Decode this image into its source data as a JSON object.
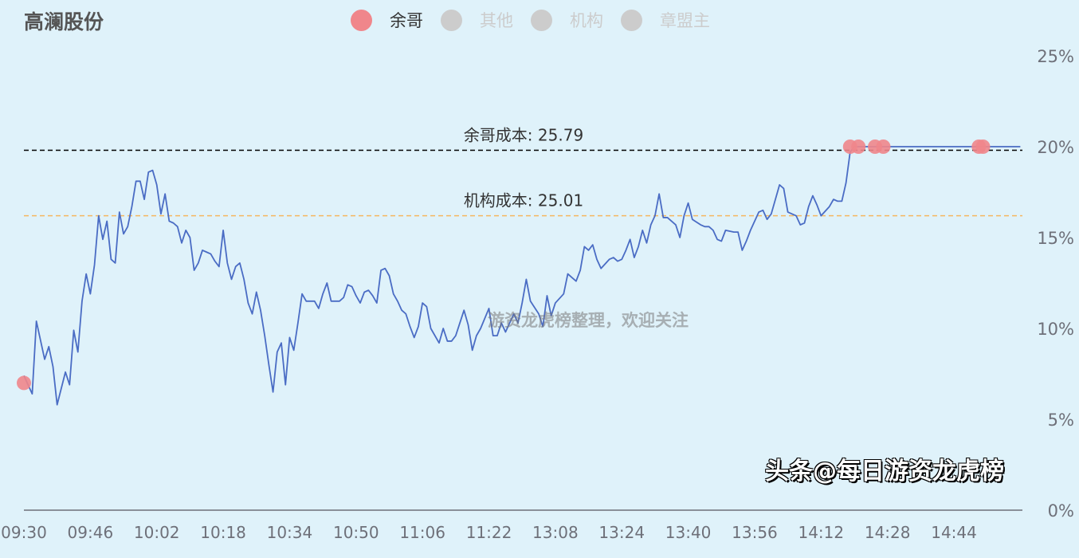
{
  "title": "高澜股份",
  "legend": [
    {
      "name": "余哥",
      "color": "#f0868b",
      "active": true
    },
    {
      "name": "其他",
      "color": "#cccccc",
      "active": false
    },
    {
      "name": "机构",
      "color": "#cccccc",
      "active": false
    },
    {
      "name": "章盟主",
      "color": "#cccccc",
      "active": false
    }
  ],
  "watermark_center": "游资龙虎榜整理，欢迎关注",
  "watermark_corner": "头条@每日游资龙虎榜",
  "chart_data": {
    "type": "line",
    "ylim": [
      0,
      25
    ],
    "y_ticks": [
      "0%",
      "5%",
      "10%",
      "15%",
      "20%",
      "25%"
    ],
    "y_axis_position": "right",
    "x_ticks": [
      "09:30",
      "09:46",
      "10:02",
      "10:18",
      "10:34",
      "10:50",
      "11:06",
      "11:22",
      "13:08",
      "13:24",
      "13:40",
      "13:56",
      "14:12",
      "14:28",
      "14:44"
    ],
    "line_color": "#4a6cc4",
    "grid": false,
    "reference_lines": [
      {
        "label": "余哥成本: 25.79",
        "value": 19.8,
        "color": "#000000"
      },
      {
        "label": "机构成本: 25.01",
        "value": 16.2,
        "color": "#f5b861"
      }
    ],
    "series": [
      {
        "points": [
          [
            "09:30",
            7.4
          ],
          [
            "09:32",
            6.4
          ],
          [
            "09:33",
            10.4
          ],
          [
            "09:35",
            8.3
          ],
          [
            "09:36",
            9.0
          ],
          [
            "09:37",
            7.9
          ],
          [
            "09:38",
            5.8
          ],
          [
            "09:40",
            7.6
          ],
          [
            "09:41",
            6.9
          ],
          [
            "09:42",
            9.9
          ],
          [
            "09:43",
            8.7
          ],
          [
            "09:44",
            11.5
          ],
          [
            "09:45",
            13.0
          ],
          [
            "09:46",
            11.9
          ],
          [
            "09:47",
            13.5
          ],
          [
            "09:48",
            16.2
          ],
          [
            "09:49",
            14.9
          ],
          [
            "09:50",
            15.9
          ],
          [
            "09:51",
            13.8
          ],
          [
            "09:52",
            13.6
          ],
          [
            "09:53",
            16.4
          ],
          [
            "09:54",
            15.2
          ],
          [
            "09:55",
            15.6
          ],
          [
            "09:56",
            16.7
          ],
          [
            "09:57",
            18.1
          ],
          [
            "09:58",
            18.1
          ],
          [
            "09:59",
            17.1
          ],
          [
            "10:00",
            18.6
          ],
          [
            "10:01",
            18.7
          ],
          [
            "10:02",
            17.9
          ],
          [
            "10:03",
            16.3
          ],
          [
            "10:04",
            17.4
          ],
          [
            "10:05",
            15.9
          ],
          [
            "10:06",
            15.8
          ],
          [
            "10:07",
            15.6
          ],
          [
            "10:08",
            14.7
          ],
          [
            "10:09",
            15.4
          ],
          [
            "10:10",
            15.0
          ],
          [
            "10:11",
            13.2
          ],
          [
            "10:12",
            13.6
          ],
          [
            "10:13",
            14.3
          ],
          [
            "10:14",
            14.2
          ],
          [
            "10:15",
            14.1
          ],
          [
            "10:16",
            13.7
          ],
          [
            "10:17",
            13.4
          ],
          [
            "10:18",
            15.4
          ],
          [
            "10:19",
            13.6
          ],
          [
            "10:20",
            12.7
          ],
          [
            "10:21",
            13.4
          ],
          [
            "10:22",
            13.6
          ],
          [
            "10:23",
            12.7
          ],
          [
            "10:24",
            11.4
          ],
          [
            "10:25",
            10.8
          ],
          [
            "10:26",
            12.0
          ],
          [
            "10:27",
            11.0
          ],
          [
            "10:28",
            9.6
          ],
          [
            "10:29",
            8.0
          ],
          [
            "10:30",
            6.5
          ],
          [
            "10:31",
            8.7
          ],
          [
            "10:32",
            9.2
          ],
          [
            "10:33",
            6.9
          ],
          [
            "10:34",
            9.5
          ],
          [
            "10:35",
            8.8
          ],
          [
            "10:36",
            10.3
          ],
          [
            "10:37",
            11.9
          ],
          [
            "10:38",
            11.5
          ],
          [
            "10:39",
            11.5
          ],
          [
            "10:40",
            11.5
          ],
          [
            "10:41",
            11.1
          ],
          [
            "10:42",
            11.9
          ],
          [
            "10:43",
            12.5
          ],
          [
            "10:44",
            11.5
          ],
          [
            "10:46",
            11.5
          ],
          [
            "10:47",
            11.7
          ],
          [
            "10:48",
            12.4
          ],
          [
            "10:49",
            12.3
          ],
          [
            "10:50",
            11.8
          ],
          [
            "10:51",
            11.4
          ],
          [
            "10:52",
            12.0
          ],
          [
            "10:53",
            12.1
          ],
          [
            "10:54",
            11.8
          ],
          [
            "10:55",
            11.4
          ],
          [
            "10:56",
            13.2
          ],
          [
            "10:57",
            13.3
          ],
          [
            "10:58",
            12.9
          ],
          [
            "10:59",
            11.9
          ],
          [
            "11:00",
            11.5
          ],
          [
            "11:01",
            11.0
          ],
          [
            "11:02",
            10.8
          ],
          [
            "11:03",
            10.1
          ],
          [
            "11:04",
            9.5
          ],
          [
            "11:05",
            10.1
          ],
          [
            "11:06",
            11.4
          ],
          [
            "11:07",
            11.2
          ],
          [
            "11:08",
            10.0
          ],
          [
            "11:10",
            9.2
          ],
          [
            "11:11",
            10.0
          ],
          [
            "11:12",
            9.3
          ],
          [
            "11:13",
            9.3
          ],
          [
            "11:14",
            9.6
          ],
          [
            "11:15",
            10.3
          ],
          [
            "11:16",
            11.0
          ],
          [
            "11:17",
            10.2
          ],
          [
            "11:18",
            8.8
          ],
          [
            "11:19",
            9.6
          ],
          [
            "11:20",
            10.0
          ],
          [
            "11:22",
            11.1
          ],
          [
            "11:23",
            9.6
          ],
          [
            "11:24",
            9.6
          ],
          [
            "11:25",
            10.3
          ],
          [
            "11:26",
            9.8
          ],
          [
            "11:28",
            10.8
          ],
          [
            "11:29",
            10.3
          ],
          [
            "11:30",
            11.4
          ],
          [
            "13:01",
            12.7
          ],
          [
            "13:02",
            11.5
          ],
          [
            "13:04",
            10.8
          ],
          [
            "13:05",
            10.1
          ],
          [
            "13:06",
            11.8
          ],
          [
            "13:07",
            10.7
          ],
          [
            "13:08",
            11.4
          ],
          [
            "13:10",
            11.9
          ],
          [
            "13:11",
            13.0
          ],
          [
            "13:12",
            12.8
          ],
          [
            "13:13",
            12.6
          ],
          [
            "13:14",
            13.2
          ],
          [
            "13:15",
            14.5
          ],
          [
            "13:16",
            14.3
          ],
          [
            "13:17",
            14.6
          ],
          [
            "13:18",
            13.8
          ],
          [
            "13:19",
            13.3
          ],
          [
            "13:21",
            13.8
          ],
          [
            "13:22",
            13.9
          ],
          [
            "13:23",
            13.7
          ],
          [
            "13:24",
            13.8
          ],
          [
            "13:25",
            14.3
          ],
          [
            "13:26",
            14.9
          ],
          [
            "13:27",
            13.9
          ],
          [
            "13:28",
            14.5
          ],
          [
            "13:29",
            15.4
          ],
          [
            "13:30",
            14.7
          ],
          [
            "13:31",
            15.7
          ],
          [
            "13:32",
            16.2
          ],
          [
            "13:33",
            17.4
          ],
          [
            "13:34",
            16.1
          ],
          [
            "13:35",
            16.1
          ],
          [
            "13:37",
            15.7
          ],
          [
            "13:38",
            15.0
          ],
          [
            "13:39",
            16.2
          ],
          [
            "13:40",
            16.9
          ],
          [
            "13:41",
            16.0
          ],
          [
            "13:43",
            15.7
          ],
          [
            "13:44",
            15.6
          ],
          [
            "13:45",
            15.6
          ],
          [
            "13:46",
            15.4
          ],
          [
            "13:47",
            14.9
          ],
          [
            "13:48",
            14.8
          ],
          [
            "13:49",
            15.4
          ],
          [
            "13:51",
            15.3
          ],
          [
            "13:52",
            15.3
          ],
          [
            "13:53",
            14.3
          ],
          [
            "13:54",
            14.8
          ],
          [
            "13:55",
            15.4
          ],
          [
            "13:57",
            16.4
          ],
          [
            "13:58",
            16.5
          ],
          [
            "13:59",
            16.0
          ],
          [
            "14:00",
            16.3
          ],
          [
            "14:01",
            17.1
          ],
          [
            "14:02",
            17.9
          ],
          [
            "14:03",
            17.7
          ],
          [
            "14:04",
            16.4
          ],
          [
            "14:06",
            16.2
          ],
          [
            "14:07",
            15.7
          ],
          [
            "14:08",
            15.8
          ],
          [
            "14:09",
            16.7
          ],
          [
            "14:10",
            17.3
          ],
          [
            "14:11",
            16.8
          ],
          [
            "14:12",
            16.2
          ],
          [
            "14:14",
            16.7
          ],
          [
            "14:15",
            17.1
          ],
          [
            "14:16",
            17.0
          ],
          [
            "14:17",
            17.0
          ],
          [
            "14:18",
            18.0
          ],
          [
            "14:19",
            19.7
          ],
          [
            "14:20",
            20.0
          ],
          [
            "15:00",
            20.0
          ]
        ]
      },
      {
        "name": "余哥",
        "type": "scatter",
        "color": "#f0868b",
        "points": [
          [
            "09:30",
            7.0
          ],
          [
            "14:19",
            20.0
          ],
          [
            "14:21",
            20.0
          ],
          [
            "14:25",
            20.0
          ],
          [
            "14:27",
            20.0
          ],
          [
            "14:50",
            20.0
          ],
          [
            "14:51",
            20.0
          ]
        ]
      }
    ]
  }
}
